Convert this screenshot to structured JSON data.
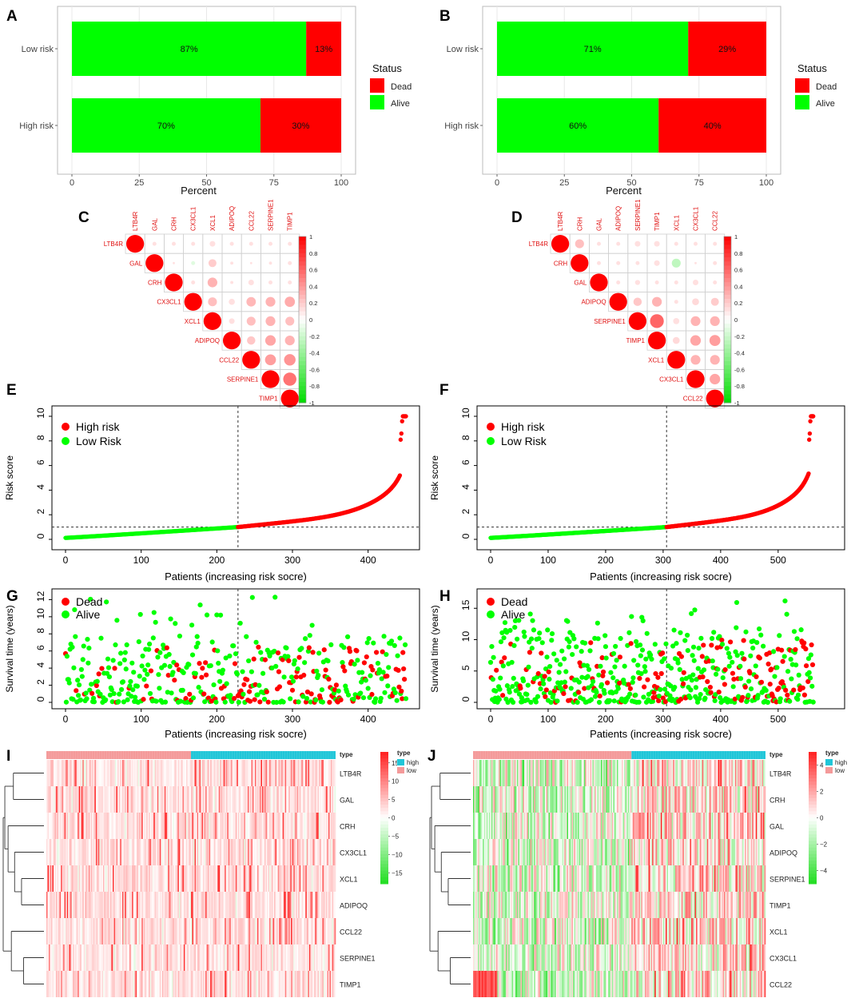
{
  "panel_labels": [
    "A",
    "B",
    "C",
    "D",
    "E",
    "F",
    "G",
    "H",
    "I",
    "J"
  ],
  "colors": {
    "red": "#ff0000",
    "green": "#00ff00",
    "corr_red": "#ff2020",
    "pink": "#f49a9a",
    "cyan": "#20c6d8",
    "text_red": "#e01010"
  },
  "chart_data": [
    {
      "panel": "A",
      "type": "bar",
      "orientation": "horizontal-stacked",
      "categories": [
        "Low risk",
        "High risk"
      ],
      "series": [
        {
          "name": "Alive",
          "values": [
            87,
            70
          ]
        },
        {
          "name": "Dead",
          "values": [
            13,
            30
          ]
        }
      ],
      "labels": [
        [
          "87%",
          "13%"
        ],
        [
          "70%",
          "30%"
        ]
      ],
      "xlabel": "Percent",
      "xticks": [
        "0",
        "25",
        "50",
        "75",
        "100"
      ],
      "xlim": [
        0,
        100
      ],
      "legend_title": "Status",
      "legend": [
        "Dead",
        "Alive"
      ],
      "grid": true
    },
    {
      "panel": "B",
      "type": "bar",
      "orientation": "horizontal-stacked",
      "categories": [
        "Low risk",
        "High risk"
      ],
      "series": [
        {
          "name": "Alive",
          "values": [
            71,
            60
          ]
        },
        {
          "name": "Dead",
          "values": [
            29,
            40
          ]
        }
      ],
      "labels": [
        [
          "71%",
          "29%"
        ],
        [
          "60%",
          "40%"
        ]
      ],
      "xlabel": "Percent",
      "xticks": [
        "0",
        "25",
        "50",
        "75",
        "100"
      ],
      "xlim": [
        0,
        100
      ],
      "legend_title": "Status",
      "legend": [
        "Dead",
        "Alive"
      ],
      "grid": true
    },
    {
      "panel": "C",
      "type": "heatmap",
      "subtype": "correlation-upper",
      "genes": [
        "LTB4R",
        "GAL",
        "CRH",
        "CX3CL1",
        "XCL1",
        "ADIPOQ",
        "CCL22",
        "SERPINE1",
        "TIMP1"
      ],
      "matrix": [
        [
          1,
          0.05,
          0.05,
          0.05,
          0.1,
          0.05,
          0.05,
          0.05,
          0.05
        ],
        [
          0.05,
          1,
          0,
          -0.05,
          0.2,
          0.03,
          0,
          0.03,
          0.05
        ],
        [
          0.05,
          0,
          1,
          0.05,
          0.3,
          0.03,
          0.1,
          0.05,
          0.05
        ],
        [
          0.05,
          -0.05,
          0.05,
          1,
          0.25,
          0.12,
          0.28,
          0.3,
          0.33
        ],
        [
          0.1,
          0.2,
          0.3,
          0.25,
          1,
          0.1,
          0.25,
          0.3,
          0.25
        ],
        [
          0.05,
          0.03,
          0.03,
          0.12,
          0.1,
          1,
          0.22,
          0.35,
          0.3
        ],
        [
          0.05,
          0,
          0.1,
          0.28,
          0.25,
          0.22,
          1,
          0.38,
          0.42
        ],
        [
          0.05,
          0.03,
          0.05,
          0.3,
          0.3,
          0.35,
          0.38,
          1,
          0.55
        ],
        [
          0.05,
          0.05,
          0.05,
          0.33,
          0.25,
          0.3,
          0.42,
          0.55,
          1
        ]
      ],
      "colorbar_ticks": [
        "1",
        "0.8",
        "0.6",
        "0.4",
        "0.2",
        "0",
        "-0.2",
        "-0.4",
        "-0.6",
        "-0.8",
        "-1"
      ],
      "range": [
        -1,
        1
      ]
    },
    {
      "panel": "D",
      "type": "heatmap",
      "subtype": "correlation-upper",
      "genes": [
        "LTB4R",
        "CRH",
        "GAL",
        "ADIPOQ",
        "SERPINE1",
        "TIMP1",
        "XCL1",
        "CX3CL1",
        "CCL22"
      ],
      "matrix": [
        [
          1,
          0.25,
          0.05,
          0.05,
          0.1,
          0.1,
          0.05,
          0.05,
          0.05
        ],
        [
          0.25,
          1,
          0.05,
          0.05,
          0.05,
          0.1,
          -0.25,
          0,
          0.05
        ],
        [
          0.05,
          0.05,
          1,
          0.05,
          0.08,
          0.05,
          0.05,
          0.1,
          0.05
        ],
        [
          0.05,
          0.05,
          0.05,
          1,
          0.22,
          0.3,
          0.05,
          0.15,
          0.2
        ],
        [
          0.1,
          0.05,
          0.08,
          0.22,
          1,
          0.6,
          0.12,
          0.3,
          0.3
        ],
        [
          0.1,
          0.1,
          0.05,
          0.3,
          0.6,
          1,
          0.15,
          0.35,
          0.38
        ],
        [
          0.05,
          -0.25,
          0.05,
          0.05,
          0.12,
          0.15,
          1,
          0.3,
          0.3
        ],
        [
          0.05,
          0,
          0.1,
          0.15,
          0.3,
          0.35,
          0.3,
          1,
          0.35
        ],
        [
          0.05,
          0.05,
          0.05,
          0.2,
          0.3,
          0.38,
          0.3,
          0.35,
          1
        ]
      ],
      "colorbar_ticks": [
        "1",
        "0.8",
        "0.6",
        "0.4",
        "0.2",
        "0",
        "-0.2",
        "-0.4",
        "-0.6",
        "-0.8",
        "-1"
      ],
      "range": [
        -1,
        1
      ]
    },
    {
      "panel": "E",
      "type": "scatter",
      "n_patients": 451,
      "cutoff_index": 228,
      "cutoff_value": 1,
      "ylabel": "Risk score",
      "xlabel": "Patients (increasing risk socre)",
      "xlim": [
        0,
        460
      ],
      "ylim": [
        0,
        10.5
      ],
      "xticks": [
        0,
        100,
        200,
        300,
        400
      ],
      "yticks": [
        0,
        2,
        4,
        6,
        8,
        10
      ],
      "legend": [
        "High risk",
        "Low Risk"
      ]
    },
    {
      "panel": "F",
      "type": "scatter",
      "n_patients": 562,
      "cutoff_index": 306,
      "cutoff_value": 1,
      "ylabel": "Risk score",
      "xlabel": "Patients (increasing risk socre)",
      "xlim": [
        0,
        575
      ],
      "ylim": [
        0,
        10.5
      ],
      "xticks": [
        0,
        100,
        200,
        300,
        400,
        500
      ],
      "yticks": [
        0,
        2,
        4,
        6,
        8,
        10
      ],
      "legend": [
        "High risk",
        "Low Risk"
      ]
    },
    {
      "panel": "G",
      "type": "scatter",
      "n_patients": 451,
      "cutoff_index": 228,
      "ylabel": "Survival time (years)",
      "xlabel": "Patients (increasing risk socre)",
      "xlim": [
        0,
        460
      ],
      "ylim": [
        0,
        12.6
      ],
      "xticks": [
        0,
        100,
        200,
        300,
        400
      ],
      "yticks": [
        0,
        2,
        4,
        6,
        8,
        10,
        12
      ],
      "ymax_data": 12.4,
      "legend": [
        "Dead",
        "Alive"
      ]
    },
    {
      "panel": "H",
      "type": "scatter",
      "n_patients": 562,
      "cutoff_index": 306,
      "ylabel": "Survival time (years)",
      "xlabel": "Patients (increasing risk socre)",
      "xlim": [
        0,
        575
      ],
      "ylim": [
        0,
        17.2
      ],
      "xticks": [
        0,
        100,
        200,
        300,
        400,
        500
      ],
      "yticks": [
        0,
        5,
        10,
        15
      ],
      "ymax_data": 16.5,
      "legend": [
        "Dead",
        "Alive"
      ]
    },
    {
      "panel": "I",
      "type": "heatmap",
      "genes": [
        "LTB4R",
        "GAL",
        "CRH",
        "CX3CL1",
        "XCL1",
        "ADIPOQ",
        "CCL22",
        "SERPINE1",
        "TIMP1"
      ],
      "type_order": [
        "low",
        "high"
      ],
      "split_fraction": 0.5,
      "legend_title": "type",
      "legend": [
        "high",
        "low"
      ],
      "colorbar_ticks": [
        "15",
        "10",
        "5",
        "0",
        "−5",
        "−10",
        "−15"
      ],
      "range": [
        -18,
        18
      ]
    },
    {
      "panel": "J",
      "type": "heatmap",
      "genes": [
        "LTB4R",
        "CRH",
        "GAL",
        "ADIPOQ",
        "SERPINE1",
        "TIMP1",
        "XCL1",
        "CX3CL1",
        "CCL22"
      ],
      "type_order": [
        "low",
        "high"
      ],
      "split_fraction": 0.54,
      "legend_title": "type",
      "legend": [
        "high",
        "low"
      ],
      "colorbar_ticks": [
        "4",
        "2",
        "0",
        "−2",
        "−4"
      ],
      "range": [
        -5,
        5
      ]
    }
  ]
}
